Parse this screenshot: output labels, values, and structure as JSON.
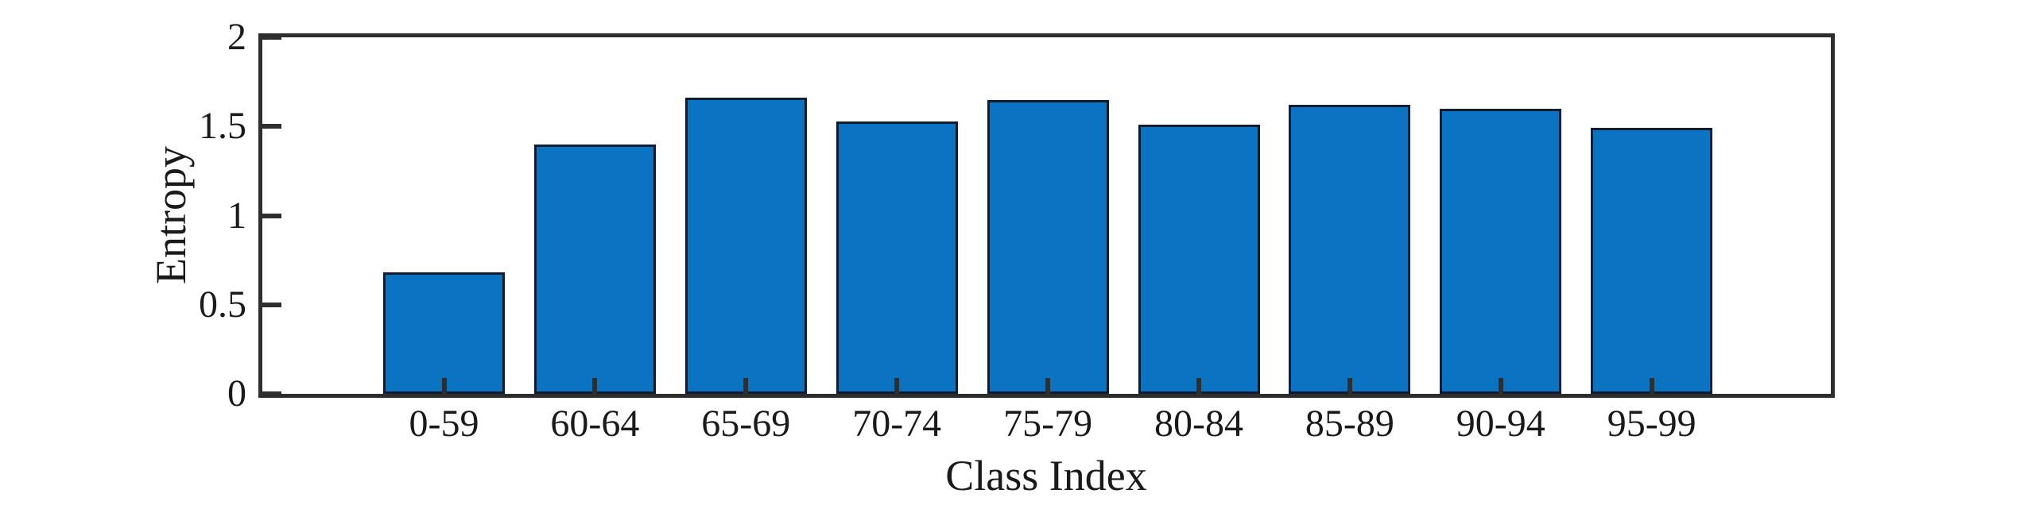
{
  "chart_data": {
    "type": "bar",
    "xlabel": "Class Index",
    "ylabel": "Entropy",
    "categories": [
      "0-59",
      "60-64",
      "65-69",
      "70-74",
      "75-79",
      "80-84",
      "85-89",
      "90-94",
      "95-99"
    ],
    "values": [
      0.68,
      1.4,
      1.66,
      1.53,
      1.65,
      1.51,
      1.62,
      1.6,
      1.49
    ],
    "ylim": [
      0,
      2
    ],
    "yticks": [
      0,
      0.5,
      1,
      1.5,
      2
    ],
    "ytick_labels": [
      "0",
      "0.5",
      "1",
      "1.5",
      "2"
    ],
    "grid": false,
    "legend": "none",
    "bar_color": "#0a73c2",
    "bar_edge_color": "#101c30",
    "axis_color": "#2e2e2e",
    "text_color": "#1a1a1a",
    "background": "#ffffff"
  }
}
